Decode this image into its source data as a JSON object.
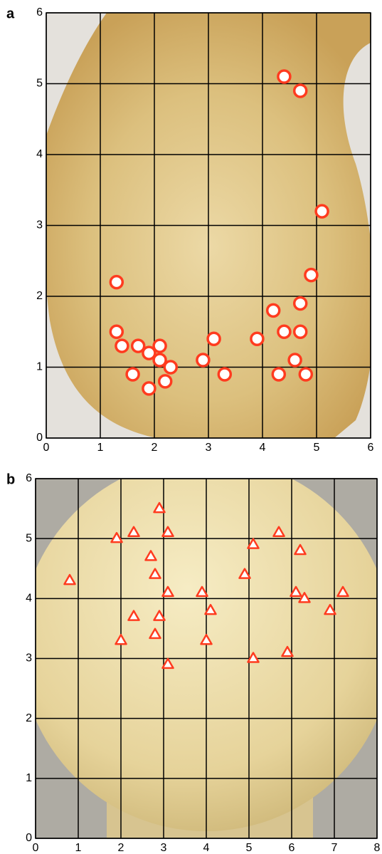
{
  "chart_data": [
    {
      "type": "scatter",
      "panel_label": "a",
      "marker": "circle",
      "color": "#ff3b1f",
      "grid": true,
      "x": [
        4.4,
        4.7,
        5.1,
        4.9,
        1.3,
        4.7,
        4.2,
        1.3,
        4.4,
        4.7,
        3.1,
        3.9,
        1.4,
        1.7,
        2.1,
        1.9,
        2.1,
        2.9,
        4.6,
        2.3,
        1.6,
        3.3,
        4.3,
        4.8,
        2.2,
        1.9
      ],
      "values": [
        5.1,
        4.9,
        3.2,
        2.3,
        2.2,
        1.9,
        1.8,
        1.5,
        1.5,
        1.5,
        1.4,
        1.4,
        1.3,
        1.3,
        1.3,
        1.2,
        1.1,
        1.1,
        1.1,
        1.0,
        0.9,
        0.9,
        0.9,
        0.9,
        0.8,
        0.7
      ],
      "xlim": [
        0,
        6
      ],
      "ylim": [
        0,
        6
      ],
      "xticks": [
        0,
        1,
        2,
        3,
        4,
        5,
        6
      ],
      "yticks": [
        0,
        1,
        2,
        3,
        4,
        5,
        6
      ]
    },
    {
      "type": "scatter",
      "panel_label": "b",
      "marker": "triangle",
      "color": "#ff3b1f",
      "grid": true,
      "x": [
        2.9,
        2.3,
        3.1,
        1.9,
        5.7,
        5.1,
        6.2,
        2.7,
        0.8,
        2.8,
        4.9,
        3.1,
        3.9,
        6.1,
        6.3,
        7.2,
        4.1,
        6.9,
        2.3,
        2.9,
        2.8,
        2.0,
        4.0,
        5.9,
        5.1,
        3.1
      ],
      "values": [
        5.5,
        5.1,
        5.1,
        5.0,
        5.1,
        4.9,
        4.8,
        4.7,
        4.3,
        4.4,
        4.4,
        4.1,
        4.1,
        4.1,
        4.0,
        4.1,
        3.8,
        3.8,
        3.7,
        3.7,
        3.4,
        3.3,
        3.3,
        3.1,
        3.0,
        2.9
      ],
      "xlim": [
        0,
        8
      ],
      "ylim": [
        0,
        6
      ],
      "xticks": [
        0,
        1,
        2,
        3,
        4,
        5,
        6,
        7,
        8
      ],
      "yticks": [
        0,
        1,
        2,
        3,
        4,
        5,
        6
      ]
    }
  ]
}
